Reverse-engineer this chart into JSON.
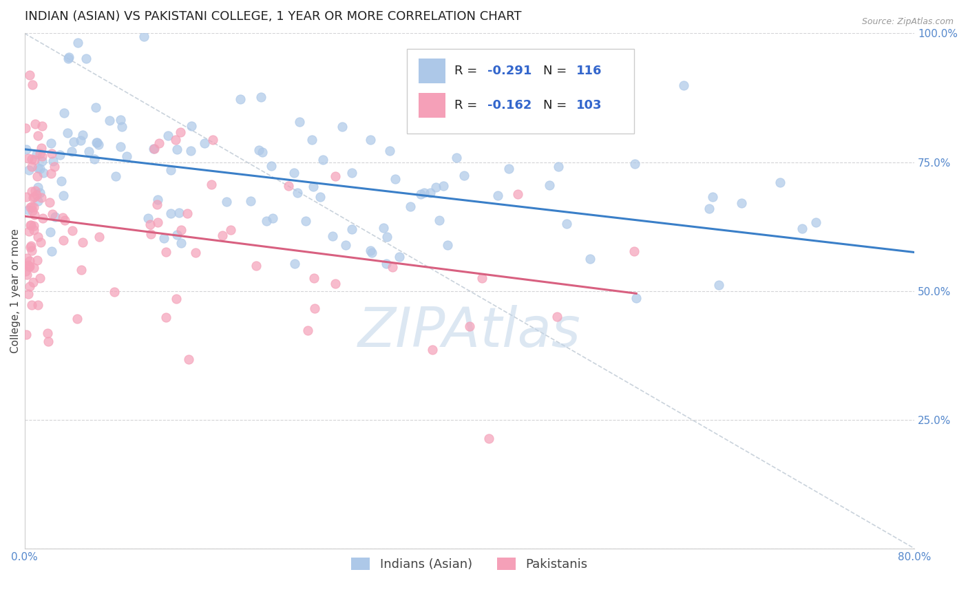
{
  "title": "INDIAN (ASIAN) VS PAKISTANI COLLEGE, 1 YEAR OR MORE CORRELATION CHART",
  "source": "Source: ZipAtlas.com",
  "ylabel": "College, 1 year or more",
  "xlim": [
    0.0,
    0.8
  ],
  "ylim": [
    0.0,
    1.0
  ],
  "xticks": [
    0.0,
    0.1,
    0.2,
    0.3,
    0.4,
    0.5,
    0.6,
    0.7,
    0.8
  ],
  "xticklabels": [
    "0.0%",
    "",
    "",
    "",
    "",
    "",
    "",
    "",
    "80.0%"
  ],
  "yticks": [
    0.0,
    0.25,
    0.5,
    0.75,
    1.0
  ],
  "yticklabels": [
    "",
    "25.0%",
    "50.0%",
    "75.0%",
    "100.0%"
  ],
  "indian_R": -0.291,
  "indian_N": 116,
  "pakistani_R": -0.162,
  "pakistani_N": 103,
  "indian_color": "#adc8e8",
  "pakistani_color": "#f5a0b8",
  "indian_line_color": "#3a7fc8",
  "pakistani_line_color": "#d86080",
  "legend_label_indian": "Indians (Asian)",
  "legend_label_pakistani": "Pakistanis",
  "watermark": "ZIPAtlas",
  "watermark_color": "#c0d4e8",
  "background_color": "#ffffff",
  "grid_color": "#c8c8cc",
  "title_fontsize": 13,
  "axis_label_fontsize": 11,
  "tick_fontsize": 11,
  "legend_fontsize": 13,
  "indian_seed": 42,
  "pakistani_seed": 123,
  "indian_line_x0": 0.0,
  "indian_line_y0": 0.775,
  "indian_line_x1": 0.8,
  "indian_line_y1": 0.575,
  "pak_line_x0": 0.0,
  "pak_line_y0": 0.645,
  "pak_line_x1": 0.55,
  "pak_line_y1": 0.495
}
